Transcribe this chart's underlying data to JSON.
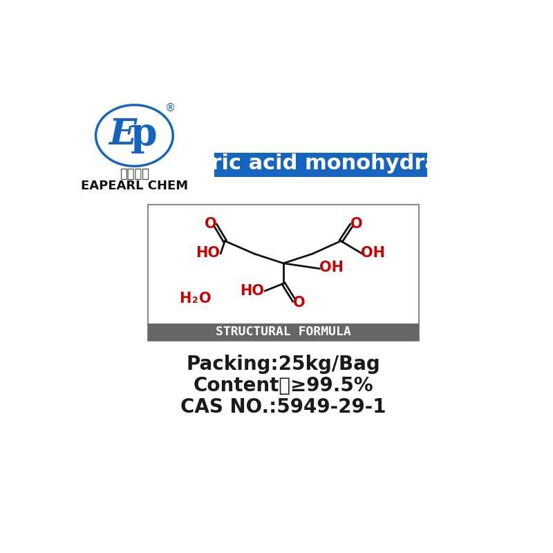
{
  "bg_color": "#ffffff",
  "title_text": "Citric acid monohydrate",
  "title_bg": "#1565C0",
  "title_color": "#ffffff",
  "title_fontsize": 22,
  "logo_text1": "易普化工",
  "logo_text2": "EAPEARL CHEM",
  "logo_color": "#1565C0",
  "formula_box_border": "#888888",
  "formula_footer_bg": "#666666",
  "formula_footer_text": "STRUCTURAL FORMULA",
  "formula_footer_color": "#ffffff",
  "red_color": "#cc0000",
  "black_color": "#111111",
  "packing": "Packing:25kg/Bag",
  "content": "Content：≥99.5%",
  "cas": "CAS NO.:5949-29-1",
  "info_fontsize": 20,
  "info_color": "#1a1a1a"
}
